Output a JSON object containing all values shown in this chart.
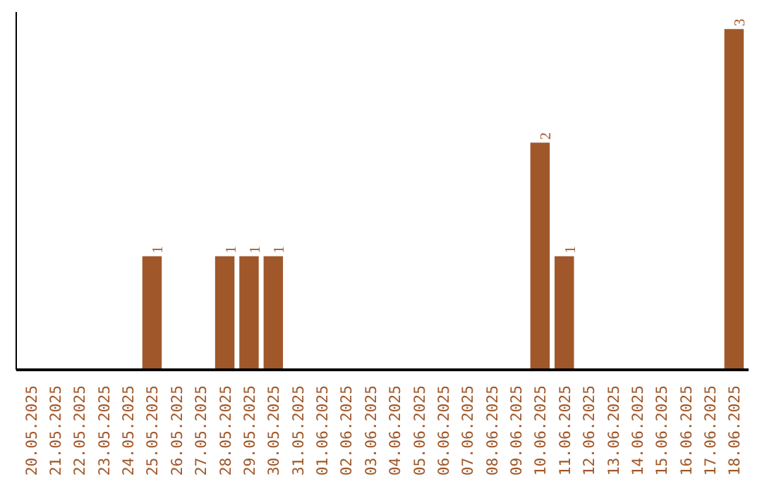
{
  "chart_data": {
    "type": "bar",
    "categories": [
      "20.05.2025",
      "21.05.2025",
      "22.05.2025",
      "23.05.2025",
      "24.05.2025",
      "25.05.2025",
      "26.05.2025",
      "27.05.2025",
      "28.05.2025",
      "29.05.2025",
      "30.05.2025",
      "31.05.2025",
      "01.06.2025",
      "02.06.2025",
      "03.06.2025",
      "04.06.2025",
      "05.06.2025",
      "06.06.2025",
      "07.06.2025",
      "08.06.2025",
      "09.06.2025",
      "10.06.2025",
      "11.06.2025",
      "12.06.2025",
      "13.06.2025",
      "14.06.2025",
      "15.06.2025",
      "16.06.2025",
      "17.06.2025",
      "18.06.2025"
    ],
    "values": [
      0,
      0,
      0,
      0,
      0,
      1,
      0,
      0,
      1,
      1,
      1,
      0,
      0,
      0,
      0,
      0,
      0,
      0,
      0,
      0,
      0,
      2,
      1,
      0,
      0,
      0,
      0,
      0,
      0,
      3
    ],
    "value_labels": [
      null,
      null,
      null,
      null,
      null,
      "1",
      null,
      null,
      "1",
      "1",
      "1",
      null,
      null,
      null,
      null,
      null,
      null,
      null,
      null,
      null,
      null,
      "2",
      "1",
      null,
      null,
      null,
      null,
      null,
      null,
      "3"
    ],
    "color": "#a0582a",
    "ylim": [
      0,
      3.15
    ],
    "tick_labels": "x",
    "grid": false
  }
}
